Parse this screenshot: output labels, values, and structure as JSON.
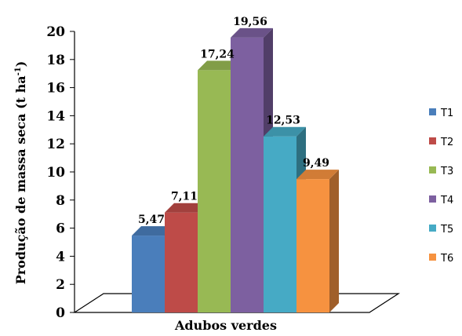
{
  "chart_data": {
    "type": "bar",
    "title": "",
    "xlabel": "Adubos verdes",
    "ylabel_main": "Produção de massa seca (t ha",
    "ylabel_sup": "-1",
    "ylabel_close": ")",
    "ylim": [
      0,
      20
    ],
    "yticks": [
      0,
      2,
      4,
      6,
      8,
      10,
      12,
      14,
      16,
      18,
      20
    ],
    "legend_position": "right",
    "series": [
      {
        "name": "T1",
        "value": 5.47,
        "label": "5,47",
        "color": "#4a7ebb"
      },
      {
        "name": "T2",
        "value": 7.11,
        "label": "7,11",
        "color": "#be4b48"
      },
      {
        "name": "T3",
        "value": 17.24,
        "label": "17,24",
        "color": "#98b954"
      },
      {
        "name": "T4",
        "value": 19.56,
        "label": "19,56",
        "color": "#7d60a0"
      },
      {
        "name": "T5",
        "value": 12.53,
        "label": "12,53",
        "color": "#46aac5"
      },
      {
        "name": "T6",
        "value": 9.49,
        "label": "9,49",
        "color": "#f69240"
      }
    ]
  }
}
